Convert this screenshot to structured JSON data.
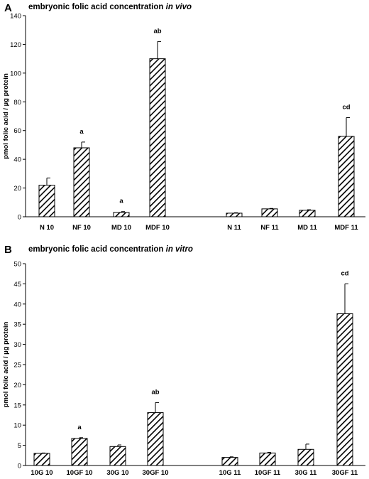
{
  "chart_data": [
    {
      "type": "bar",
      "panel": "A",
      "title": "embryonic folic acid concentration",
      "title_italic": "in vivo",
      "ylabel": "pmol folic acid / µg protein",
      "ylim": [
        0,
        140
      ],
      "yticks": [
        0,
        20,
        40,
        60,
        80,
        100,
        120,
        140
      ],
      "categories": [
        "N 10",
        "NF 10",
        "MD 10",
        "MDF 10",
        "N 11",
        "NF 11",
        "MD 11",
        "MDF 11"
      ],
      "values": [
        22,
        48,
        3,
        110,
        2.5,
        5.5,
        4.5,
        56
      ],
      "errors": [
        5,
        4,
        0.6,
        12,
        0.3,
        0.3,
        0.4,
        13
      ],
      "annotations": [
        "",
        "a",
        "a",
        "ab",
        "",
        "",
        "",
        "cd"
      ],
      "bar_fill": "diagonal-hatch"
    },
    {
      "type": "bar",
      "panel": "B",
      "title": "embryonic folic acid concentration",
      "title_italic": "in vitro",
      "ylabel": "pmol folic acid / µg protein",
      "ylim": [
        0,
        50
      ],
      "yticks": [
        0,
        5,
        10,
        15,
        20,
        25,
        30,
        35,
        40,
        45,
        50
      ],
      "categories": [
        "10G 10",
        "10GF 10",
        "30G 10",
        "30GF 10",
        "10G 11",
        "10GF 11",
        "30G 11",
        "30GF 11"
      ],
      "values": [
        3,
        6.7,
        4.7,
        13.1,
        2,
        3.1,
        4,
        37.6
      ],
      "errors": [
        0.1,
        0.2,
        0.4,
        2.5,
        0.15,
        0.15,
        1.3,
        7.4
      ],
      "annotations": [
        "",
        "a",
        "",
        "ab",
        "",
        "",
        "",
        "cd"
      ],
      "bar_fill": "diagonal-hatch"
    }
  ]
}
